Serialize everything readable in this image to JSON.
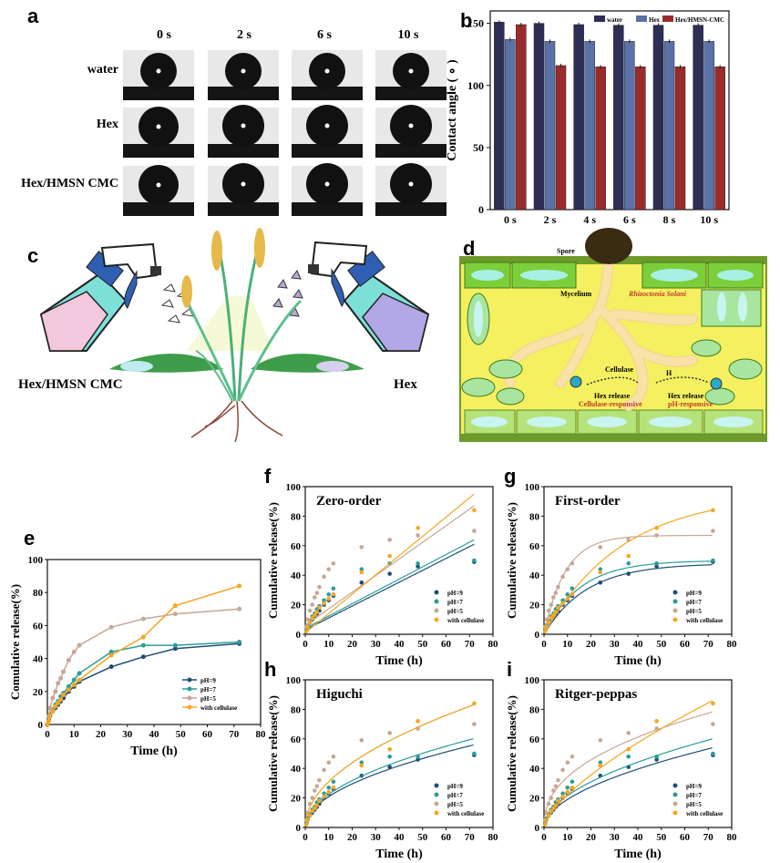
{
  "panel_letters": {
    "a": "a",
    "b": "b",
    "c": "c",
    "d": "d",
    "e": "e",
    "f": "f",
    "g": "g",
    "h": "h",
    "i": "i"
  },
  "panel_a": {
    "time_labels": [
      "0 s",
      "2 s",
      "6 s",
      "10 s"
    ],
    "row_labels": [
      "water",
      "Hex",
      "Hex/HMSN CMC"
    ]
  },
  "panel_c": {
    "left_label": "Hex/HMSN CMC",
    "right_label": "Hex"
  },
  "panel_d": {
    "spore": "Spore",
    "mycelium": "Mycelium",
    "pathogen": "Rhizoctonia Solani",
    "cellulase": "Cellulase",
    "h_plus": "H",
    "hex_release_left": "Hex release",
    "cellulase_responsive": "Cellulase-responsive",
    "hex_release_right": "Hex release",
    "ph_responsive": "pH-responsive"
  },
  "colors": {
    "pH9": "#1f4e79",
    "pH7": "#2a9d9a",
    "pH5": "#c7a796",
    "cellulase": "#f5a623",
    "water": "#2d2e56",
    "hex": "#5a72a8",
    "hexhmsn": "#9b2b2b"
  },
  "chart_data": [
    {
      "id": "b",
      "type": "bar",
      "title": "",
      "categories": [
        "0 s",
        "2 s",
        "4 s",
        "6 s",
        "8 s",
        "10 s"
      ],
      "series": [
        {
          "name": "water",
          "values": [
            151,
            150,
            149,
            148.5,
            148.5,
            148.5
          ]
        },
        {
          "name": "Hex",
          "values": [
            137,
            135.5,
            135.5,
            135.5,
            135.5,
            135.5
          ]
        },
        {
          "name": "Hex/HMSN-CMC",
          "values": [
            149,
            116,
            115,
            115,
            115,
            115
          ]
        }
      ],
      "xlabel": "",
      "ylabel": "Contact angle ( ∘ )",
      "ylim": [
        0,
        160
      ],
      "yticks": [
        0,
        50,
        100,
        150
      ]
    },
    {
      "id": "e",
      "type": "line",
      "title": "",
      "xlabel": "Time (h)",
      "ylabel": "Comulative release(%)",
      "xlim": [
        0,
        80
      ],
      "ylim": [
        0,
        100
      ],
      "xticks": [
        0,
        10,
        20,
        30,
        40,
        50,
        60,
        70,
        80
      ],
      "yticks": [
        0,
        20,
        40,
        60,
        80,
        100
      ],
      "series": [
        {
          "name": "pH=9",
          "x": [
            0,
            0.5,
            1,
            2,
            3,
            4,
            5,
            6,
            8,
            10,
            12,
            24,
            36,
            48,
            72
          ],
          "y": [
            0,
            3,
            5,
            8,
            10,
            12,
            14,
            16,
            20,
            23,
            26,
            35,
            41,
            46,
            49
          ]
        },
        {
          "name": "pH=7",
          "x": [
            0,
            0.5,
            1,
            2,
            3,
            4,
            5,
            6,
            8,
            10,
            12,
            24,
            36,
            48,
            72
          ],
          "y": [
            0,
            3,
            6,
            9,
            12,
            14,
            17,
            19,
            23,
            27,
            31,
            44,
            48,
            48,
            50
          ]
        },
        {
          "name": "pH=5",
          "x": [
            0,
            0.5,
            1,
            2,
            3,
            4,
            5,
            6,
            8,
            10,
            12,
            24,
            36,
            48,
            72
          ],
          "y": [
            0,
            5,
            10,
            16,
            20,
            25,
            28,
            32,
            39,
            44,
            48,
            59,
            64,
            67,
            70
          ]
        },
        {
          "name": "with cellulase",
          "x": [
            0,
            0.5,
            1,
            2,
            3,
            4,
            5,
            6,
            8,
            10,
            12,
            24,
            36,
            48,
            72
          ],
          "y": [
            0,
            2,
            5,
            8,
            11,
            13,
            15,
            18,
            21,
            24,
            27,
            42,
            53,
            72,
            84
          ]
        }
      ]
    },
    {
      "id": "f",
      "type": "scatter",
      "title": "Zero-order",
      "xlabel": "Time (h)",
      "ylabel": "Cumulative release(%)",
      "xlim": [
        0,
        80
      ],
      "ylim": [
        0,
        100
      ],
      "xticks": [
        0,
        10,
        20,
        30,
        40,
        50,
        60,
        70,
        80
      ],
      "yticks": [
        0,
        20,
        40,
        60,
        80,
        100
      ],
      "points_x": [
        0.5,
        1,
        2,
        3,
        4,
        5,
        6,
        8,
        10,
        12,
        24,
        36,
        48,
        72
      ],
      "series": [
        {
          "name": "pH=9",
          "y": [
            3,
            5,
            8,
            10,
            12,
            14,
            16,
            20,
            23,
            26,
            35,
            41,
            46,
            49
          ],
          "fit": [
            3,
            61
          ]
        },
        {
          "name": "pH=7",
          "y": [
            3,
            6,
            9,
            12,
            14,
            17,
            19,
            23,
            27,
            31,
            44,
            48,
            48,
            50
          ],
          "fit": [
            4,
            64
          ]
        },
        {
          "name": "pH=5",
          "y": [
            5,
            10,
            16,
            20,
            25,
            28,
            32,
            39,
            44,
            48,
            59,
            64,
            67,
            70
          ],
          "fit": [
            6,
            87
          ]
        },
        {
          "name": "with cellulase",
          "y": [
            2,
            5,
            8,
            11,
            13,
            15,
            18,
            21,
            24,
            27,
            42,
            53,
            72,
            84
          ],
          "fit": [
            1,
            95
          ]
        }
      ]
    },
    {
      "id": "g",
      "type": "scatter",
      "title": "First-order",
      "xlabel": "Time (h)",
      "ylabel": "Cumulative release(%)",
      "xlim": [
        0,
        80
      ],
      "ylim": [
        0,
        100
      ],
      "xticks": [
        0,
        10,
        20,
        30,
        40,
        50,
        60,
        70,
        80
      ],
      "yticks": [
        0,
        20,
        40,
        60,
        80,
        100
      ],
      "points_x": [
        0.5,
        1,
        2,
        3,
        4,
        5,
        6,
        8,
        10,
        12,
        24,
        36,
        48,
        72
      ],
      "series": [
        {
          "name": "pH=9",
          "y": [
            3,
            5,
            8,
            10,
            12,
            14,
            16,
            20,
            23,
            26,
            35,
            41,
            46,
            49
          ],
          "fit": [
            48,
            0.055
          ]
        },
        {
          "name": "pH=7",
          "y": [
            3,
            6,
            9,
            12,
            14,
            17,
            19,
            23,
            27,
            31,
            44,
            48,
            48,
            50
          ],
          "fit": [
            50,
            0.065
          ]
        },
        {
          "name": "pH=5",
          "y": [
            5,
            10,
            16,
            20,
            25,
            28,
            32,
            39,
            44,
            48,
            59,
            64,
            67,
            70
          ],
          "fit": [
            67,
            0.11
          ]
        },
        {
          "name": "with cellulase",
          "y": [
            2,
            5,
            8,
            11,
            13,
            15,
            18,
            21,
            24,
            27,
            42,
            53,
            72,
            84
          ],
          "fit": [
            95,
            0.03
          ]
        }
      ]
    },
    {
      "id": "h",
      "type": "scatter",
      "title": "Higuchi",
      "xlabel": "Time (h)",
      "ylabel": "Cumulative release(%)",
      "xlim": [
        0,
        80
      ],
      "ylim": [
        0,
        100
      ],
      "xticks": [
        0,
        10,
        20,
        30,
        40,
        50,
        60,
        70,
        80
      ],
      "yticks": [
        0,
        20,
        40,
        60,
        80,
        100
      ],
      "points_x": [
        0.5,
        1,
        2,
        3,
        4,
        5,
        6,
        8,
        10,
        12,
        24,
        36,
        48,
        72
      ],
      "series": [
        {
          "name": "pH=9",
          "y": [
            3,
            5,
            8,
            10,
            12,
            14,
            16,
            20,
            23,
            26,
            35,
            41,
            46,
            49
          ],
          "fit": [
            6.6
          ]
        },
        {
          "name": "pH=7",
          "y": [
            3,
            6,
            9,
            12,
            14,
            17,
            19,
            23,
            27,
            31,
            44,
            48,
            48,
            50
          ],
          "fit": [
            7.1
          ]
        },
        {
          "name": "pH=5",
          "y": [
            5,
            10,
            16,
            20,
            25,
            28,
            32,
            39,
            44,
            48,
            59,
            64,
            67,
            70
          ],
          "fit": [
            9.8
          ]
        },
        {
          "name": "with cellulase",
          "y": [
            2,
            5,
            8,
            11,
            13,
            15,
            18,
            21,
            24,
            27,
            42,
            53,
            72,
            84
          ],
          "fit": [
            9.8
          ]
        }
      ]
    },
    {
      "id": "i",
      "type": "scatter",
      "title": "Ritger-peppas",
      "xlabel": "Time (h)",
      "ylabel": "Cumulative release(%)",
      "xlim": [
        0,
        80
      ],
      "ylim": [
        0,
        100
      ],
      "xticks": [
        0,
        10,
        20,
        30,
        40,
        50,
        60,
        70,
        80
      ],
      "yticks": [
        0,
        20,
        40,
        60,
        80,
        100
      ],
      "points_x": [
        0.5,
        1,
        2,
        3,
        4,
        5,
        6,
        8,
        10,
        12,
        24,
        36,
        48,
        72
      ],
      "series": [
        {
          "name": "pH=9",
          "y": [
            3,
            5,
            8,
            10,
            12,
            14,
            16,
            20,
            23,
            26,
            35,
            41,
            46,
            49
          ],
          "fit": [
            5.6,
            0.53
          ]
        },
        {
          "name": "pH=7",
          "y": [
            3,
            6,
            9,
            12,
            14,
            17,
            19,
            23,
            27,
            31,
            44,
            48,
            48,
            50
          ],
          "fit": [
            6.5,
            0.52
          ]
        },
        {
          "name": "pH=5",
          "y": [
            5,
            10,
            16,
            20,
            25,
            28,
            32,
            39,
            44,
            48,
            59,
            64,
            67,
            70
          ],
          "fit": [
            13,
            0.42
          ]
        },
        {
          "name": "with cellulase",
          "y": [
            2,
            5,
            8,
            11,
            13,
            15,
            18,
            21,
            24,
            27,
            42,
            53,
            72,
            84
          ],
          "fit": [
            4.5,
            0.69
          ]
        }
      ]
    }
  ]
}
